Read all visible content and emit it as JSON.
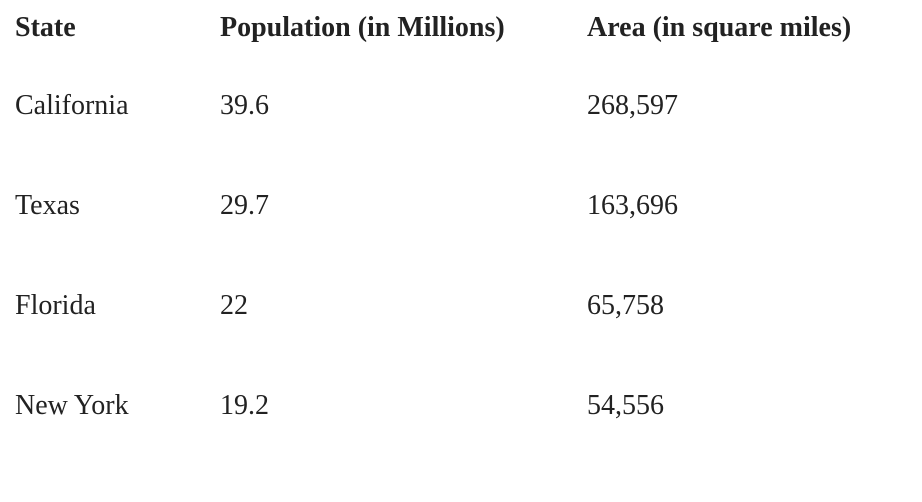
{
  "table": {
    "headers": [
      "State",
      "Population (in Millions)",
      "Area (in square miles)"
    ],
    "rows": [
      [
        "California",
        "39.6",
        "268,597"
      ],
      [
        "Texas",
        "29.7",
        "163,696"
      ],
      [
        "Florida",
        "22",
        "65,758"
      ],
      [
        "New York",
        "19.2",
        "54,556"
      ]
    ]
  }
}
